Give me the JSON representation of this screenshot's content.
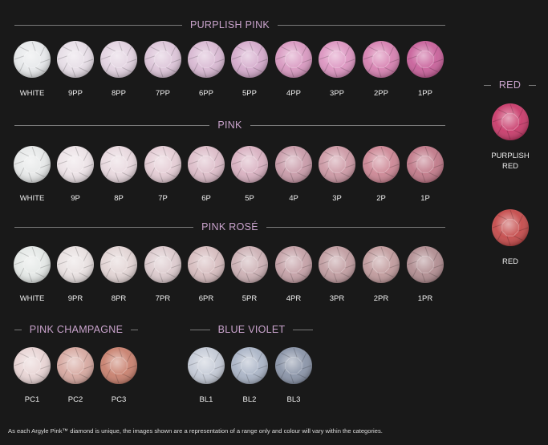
{
  "sections": [
    {
      "title": "PURPLISH PINK",
      "gems": [
        {
          "label": "WHITE",
          "color": "#e6e8ea"
        },
        {
          "label": "9PP",
          "color": "#e6dde6"
        },
        {
          "label": "8PP",
          "color": "#e2d2e0"
        },
        {
          "label": "7PP",
          "color": "#dcc4d8"
        },
        {
          "label": "6PP",
          "color": "#d8b8d2"
        },
        {
          "label": "5PP",
          "color": "#d4aacb"
        },
        {
          "label": "4PP",
          "color": "#d898c0"
        },
        {
          "label": "3PP",
          "color": "#dc94c0"
        },
        {
          "label": "2PP",
          "color": "#d680b0"
        },
        {
          "label": "1PP",
          "color": "#c8609a"
        }
      ]
    },
    {
      "title": "PINK",
      "gems": [
        {
          "label": "WHITE",
          "color": "#e6e8e8"
        },
        {
          "label": "9P",
          "color": "#ece2e6"
        },
        {
          "label": "8P",
          "color": "#e8d8de"
        },
        {
          "label": "7P",
          "color": "#e4ccd4"
        },
        {
          "label": "6P",
          "color": "#dcbcc8"
        },
        {
          "label": "5P",
          "color": "#d8b0c0"
        },
        {
          "label": "4P",
          "color": "#c89aa8"
        },
        {
          "label": "3P",
          "color": "#cc98a4"
        },
        {
          "label": "2P",
          "color": "#cc8694"
        },
        {
          "label": "1P",
          "color": "#c07888"
        }
      ]
    },
    {
      "title": "PINK ROSÉ",
      "gems": [
        {
          "label": "WHITE",
          "color": "#e4e8e6"
        },
        {
          "label": "9PR",
          "color": "#e8e0e0"
        },
        {
          "label": "8PR",
          "color": "#e2d4d4"
        },
        {
          "label": "7PR",
          "color": "#dccacd"
        },
        {
          "label": "6PR",
          "color": "#d6bcbe"
        },
        {
          "label": "5PR",
          "color": "#ccb0b4"
        },
        {
          "label": "4PR",
          "color": "#c4a0a6"
        },
        {
          "label": "3PR",
          "color": "#c09ca0"
        },
        {
          "label": "2PR",
          "color": "#c09a9c"
        },
        {
          "label": "1PR",
          "color": "#b08c90"
        }
      ]
    },
    {
      "title": "PINK CHAMPAGNE",
      "gems": [
        {
          "label": "PC1",
          "color": "#e8d4d4"
        },
        {
          "label": "PC2",
          "color": "#d6a8a0"
        },
        {
          "label": "PC3",
          "color": "#c8806e"
        }
      ]
    },
    {
      "title": "BLUE VIOLET",
      "gems": [
        {
          "label": "BL1",
          "color": "#c4cad6"
        },
        {
          "label": "BL2",
          "color": "#aab4c6"
        },
        {
          "label": "BL3",
          "color": "#8a94a8"
        }
      ]
    },
    {
      "title": "RED",
      "gems": [
        {
          "label": "PURPLISH RED",
          "color": "#c83a6a"
        },
        {
          "label": "RED",
          "color": "#c44a4a"
        }
      ]
    }
  ],
  "footnote": "As each Argyle Pink™ diamond is unique, the images shown are a representation of a range only and colour will vary within the categories."
}
